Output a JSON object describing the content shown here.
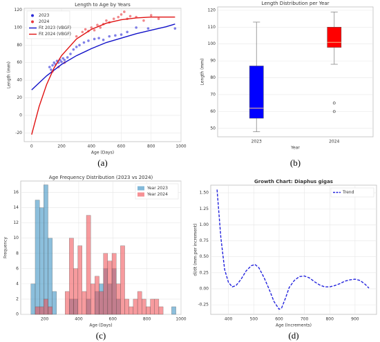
{
  "chart_data": [
    {
      "type": "scatter",
      "caption": "(a)",
      "title": "Length to Age by Years",
      "xlabel": "Age (Days)",
      "ylabel": "Length (mm)",
      "xlim": [
        -50,
        1000
      ],
      "xticks": [
        0,
        200,
        400,
        600,
        800,
        1000
      ],
      "ylim": [
        -30,
        122
      ],
      "yticks": [
        -20,
        0,
        20,
        40,
        60,
        80,
        100,
        120
      ],
      "grid": true,
      "legend": "upper left",
      "series": [
        {
          "name": "2023",
          "color": "#2b2bd9",
          "style": "markers",
          "x": [
            120,
            130,
            140,
            150,
            160,
            170,
            180,
            190,
            200,
            210,
            220,
            240,
            260,
            280,
            300,
            320,
            350,
            380,
            420,
            450,
            480,
            520,
            560,
            600,
            640,
            700,
            780,
            960
          ],
          "values": [
            55,
            52,
            57,
            60,
            58,
            62,
            60,
            63,
            61,
            65,
            63,
            66,
            70,
            75,
            78,
            80,
            83,
            85,
            87,
            88,
            86,
            90,
            91,
            92,
            95,
            100,
            99,
            99
          ]
        },
        {
          "name": "2024",
          "color": "#e8383d",
          "style": "markers",
          "x": [
            140,
            180,
            220,
            300,
            340,
            360,
            380,
            400,
            420,
            440,
            460,
            480,
            500,
            520,
            550,
            580,
            600,
            620,
            640,
            660,
            700,
            750,
            800,
            850
          ],
          "values": [
            50,
            55,
            60,
            90,
            95,
            98,
            96,
            100,
            97,
            103,
            100,
            104,
            108,
            106,
            110,
            112,
            115,
            118,
            110,
            113,
            112,
            108,
            114,
            110
          ]
        },
        {
          "name": "Fit 2023 (VBGF)",
          "color": "#1010c8",
          "style": "line",
          "x": [
            0,
            100,
            200,
            300,
            400,
            500,
            600,
            700,
            800,
            900,
            960
          ],
          "values": [
            29,
            45,
            58,
            68,
            76,
            83,
            88,
            93,
            97,
            101,
            104
          ]
        },
        {
          "name": "Fit 2024 (VBGF)",
          "color": "#e01010",
          "style": "line",
          "x": [
            0,
            50,
            100,
            150,
            200,
            300,
            400,
            500,
            600,
            700,
            800,
            960
          ],
          "values": [
            -22,
            10,
            35,
            54,
            68,
            87,
            98,
            105,
            109,
            111,
            112,
            112
          ]
        }
      ]
    },
    {
      "type": "box",
      "caption": "(b)",
      "title": "Length Distribution per Year",
      "xlabel": "Year",
      "ylabel": "Length (mm)",
      "ylim": [
        45,
        122
      ],
      "yticks": [
        50,
        60,
        70,
        80,
        90,
        100,
        110,
        120
      ],
      "grid": true,
      "categories": [
        "2023",
        "2024"
      ],
      "boxes": [
        {
          "color": "#0000ff",
          "min": 48,
          "q1": 56,
          "median": 62,
          "q3": 87,
          "max": 113,
          "outliers": []
        },
        {
          "color": "#ff0000",
          "min": 88,
          "q1": 98,
          "median": 101,
          "q3": 110,
          "max": 119,
          "outliers": [
            65,
            60
          ]
        }
      ]
    },
    {
      "type": "histogram",
      "caption": "(c)",
      "title": "Age Frequency Distribution (2023 vs 2024)",
      "xlabel": "Age (Days)",
      "ylabel": "Frequency",
      "xlim": [
        60,
        1000
      ],
      "xticks": [
        200,
        400,
        600,
        800,
        1000
      ],
      "ylim": [
        0,
        17.5
      ],
      "yticks": [
        0,
        2,
        4,
        6,
        8,
        10,
        12,
        14,
        16
      ],
      "grid": true,
      "legend": "upper right",
      "bins": [
        120,
        145,
        170,
        195,
        220,
        245,
        270,
        295,
        320,
        345,
        370,
        395,
        420,
        445,
        470,
        495,
        520,
        545,
        570,
        595,
        620,
        645,
        670,
        695,
        720,
        745,
        770,
        795,
        820,
        845,
        870,
        895,
        920,
        945,
        970
      ],
      "series": [
        {
          "name": "Year 2023",
          "color": "#2e8bc0",
          "values": [
            4,
            15,
            14,
            17,
            10,
            3,
            0,
            0,
            0,
            2,
            2,
            0,
            0,
            2,
            0,
            3,
            4,
            6,
            4,
            6,
            2,
            0,
            0,
            0,
            0,
            0,
            0,
            0,
            0,
            0,
            0,
            0,
            0,
            1
          ]
        },
        {
          "name": "Year 2024",
          "color": "#f0484e",
          "values": [
            0,
            1,
            1,
            2,
            1,
            0,
            0,
            0,
            3,
            10,
            6,
            9,
            3,
            13,
            4,
            5,
            3,
            8,
            7,
            8,
            4,
            9,
            2,
            1,
            2,
            3,
            2,
            1,
            2,
            2,
            1,
            0,
            0,
            0
          ]
        }
      ]
    },
    {
      "type": "line",
      "caption": "(d)",
      "title": "Growth Chart: Diaphus gigas",
      "xlabel": "Age (Increments)",
      "ylabel": "dl/dt (mm per increment)",
      "xlim": [
        330,
        985
      ],
      "xticks": [
        400,
        500,
        600,
        700,
        800,
        900
      ],
      "ylim": [
        -0.4,
        1.62
      ],
      "yticks": [
        {
          "value": -0.25,
          "label": "-0.25"
        },
        {
          "value": 0,
          "label": "0.00"
        },
        {
          "value": 0.25,
          "label": "0.25"
        },
        {
          "value": 0.5,
          "label": "0.50"
        },
        {
          "value": 0.75,
          "label": "0.75"
        },
        {
          "value": 1,
          "label": "1.00"
        },
        {
          "value": 1.25,
          "label": "1.25"
        },
        {
          "value": 1.5,
          "label": "1.50"
        }
      ],
      "grid": true,
      "legend": "upper right",
      "dashed": true,
      "series": [
        {
          "name": "Trend",
          "color": "#2222dd",
          "x": [
            355,
            370,
            385,
            400,
            415,
            430,
            450,
            470,
            490,
            505,
            520,
            540,
            560,
            580,
            600,
            610,
            625,
            640,
            660,
            680,
            700,
            720,
            740,
            760,
            780,
            800,
            820,
            840,
            860,
            880,
            900,
            920,
            940,
            955
          ],
          "values": [
            1.55,
            0.8,
            0.3,
            0.1,
            0.03,
            0.05,
            0.15,
            0.28,
            0.36,
            0.38,
            0.33,
            0.18,
            0.0,
            -0.2,
            -0.32,
            -0.3,
            -0.15,
            0.02,
            0.13,
            0.19,
            0.2,
            0.17,
            0.11,
            0.06,
            0.03,
            0.03,
            0.05,
            0.08,
            0.12,
            0.14,
            0.15,
            0.13,
            0.07,
            0.01
          ]
        }
      ]
    }
  ]
}
